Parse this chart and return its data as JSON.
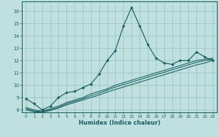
{
  "xlabel": "Humidex (Indice chaleur)",
  "background_color": "#c0e0e0",
  "grid_color": "#90c0c0",
  "line_color": "#1a6060",
  "xlim": [
    -0.5,
    23.5
  ],
  "ylim": [
    7.8,
    16.8
  ],
  "yticks": [
    8,
    9,
    10,
    11,
    12,
    13,
    14,
    15,
    16
  ],
  "xticks": [
    0,
    1,
    2,
    3,
    4,
    5,
    6,
    7,
    8,
    9,
    10,
    11,
    12,
    13,
    14,
    15,
    16,
    17,
    18,
    19,
    20,
    21,
    22,
    23
  ],
  "line1_x": [
    0,
    1,
    2,
    3,
    4,
    5,
    6,
    7,
    8,
    9,
    10,
    11,
    12,
    13,
    14,
    15,
    16,
    17,
    18,
    19,
    20,
    21,
    22,
    23
  ],
  "line1_y": [
    8.9,
    8.5,
    8.0,
    8.3,
    9.0,
    9.4,
    9.5,
    9.8,
    10.1,
    10.9,
    12.0,
    12.8,
    14.8,
    16.3,
    14.8,
    13.3,
    12.2,
    11.8,
    11.7,
    12.0,
    12.0,
    12.7,
    12.3,
    12.0
  ],
  "line2_x": [
    0,
    1,
    2,
    3,
    4,
    5,
    6,
    7,
    8,
    9,
    10,
    11,
    12,
    13,
    14,
    15,
    16,
    17,
    18,
    19,
    20,
    21,
    22,
    23
  ],
  "line2_y": [
    8.2,
    8.0,
    7.9,
    8.1,
    8.3,
    8.6,
    8.8,
    9.0,
    9.3,
    9.5,
    9.7,
    10.0,
    10.2,
    10.4,
    10.6,
    10.8,
    11.0,
    11.2,
    11.4,
    11.6,
    11.8,
    12.0,
    12.1,
    12.2
  ],
  "line3_x": [
    0,
    1,
    2,
    3,
    4,
    5,
    6,
    7,
    8,
    9,
    10,
    11,
    12,
    13,
    14,
    15,
    16,
    17,
    18,
    19,
    20,
    21,
    22,
    23
  ],
  "line3_y": [
    8.1,
    7.9,
    7.85,
    8.0,
    8.2,
    8.5,
    8.7,
    8.9,
    9.15,
    9.35,
    9.6,
    9.85,
    10.05,
    10.25,
    10.45,
    10.65,
    10.85,
    11.05,
    11.25,
    11.45,
    11.65,
    11.85,
    12.0,
    12.1
  ],
  "line4_x": [
    0,
    1,
    2,
    3,
    4,
    5,
    6,
    7,
    8,
    9,
    10,
    11,
    12,
    13,
    14,
    15,
    16,
    17,
    18,
    19,
    20,
    21,
    22,
    23
  ],
  "line4_y": [
    8.0,
    7.85,
    7.8,
    7.95,
    8.15,
    8.4,
    8.6,
    8.8,
    9.0,
    9.2,
    9.45,
    9.65,
    9.85,
    10.05,
    10.25,
    10.45,
    10.65,
    10.85,
    11.05,
    11.25,
    11.45,
    11.65,
    11.8,
    12.0
  ]
}
